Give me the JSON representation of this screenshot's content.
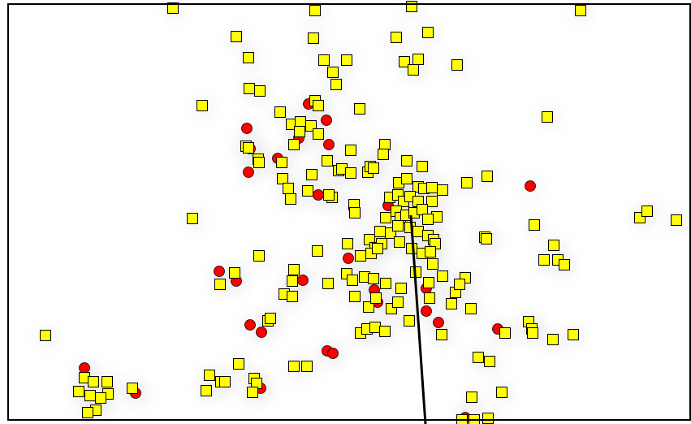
{
  "map": {
    "background_color": "#ffffff",
    "frame_color": "#000000",
    "halo_color": "#d9d9d9",
    "square_marker": {
      "icon": "yellow-square-marker-icon",
      "fill": "#ffff00",
      "stroke": "#000000"
    },
    "circle_marker": {
      "icon": "red-circle-marker-icon",
      "fill": "#ff0000",
      "stroke": "#000000"
    },
    "line_color": "#000000"
  }
}
